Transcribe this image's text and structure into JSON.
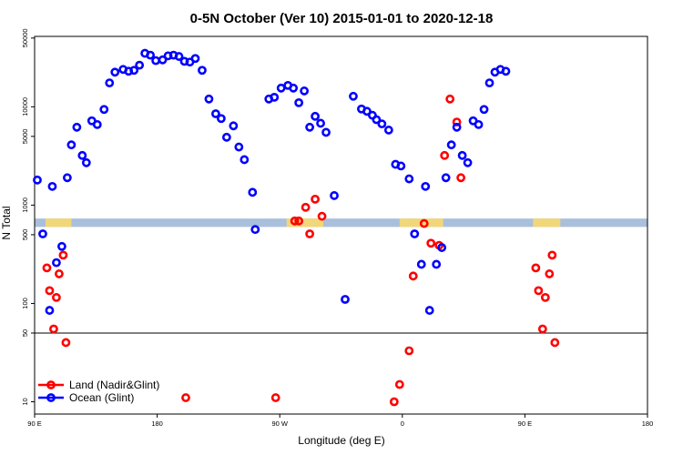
{
  "chart_data": {
    "type": "scatter",
    "title": "0-5N October (Ver 10)   2015-01-01 to 2020-12-18",
    "xlabel": "Longitude (deg E)",
    "ylabel": "N Total",
    "x_ticks": [
      {
        "value": 90,
        "label": "90 E"
      },
      {
        "value": 180,
        "label": "180"
      },
      {
        "value": 270,
        "label": "90 W"
      },
      {
        "value": 360,
        "label": "0"
      },
      {
        "value": 450,
        "label": "90 E"
      },
      {
        "value": 540,
        "label": "180"
      }
    ],
    "y_ticks": [
      {
        "value": 10,
        "label": "10"
      },
      {
        "value": 50,
        "label": "50"
      },
      {
        "value": 100,
        "label": "100"
      },
      {
        "value": 500,
        "label": "500"
      },
      {
        "value": 1000,
        "label": "1000"
      },
      {
        "value": 5000,
        "label": "5000"
      },
      {
        "value": 10000,
        "label": "10000"
      },
      {
        "value": 50000,
        "label": "50000"
      }
    ],
    "xlim": [
      90,
      540
    ],
    "ylim": [
      7.5,
      52000
    ],
    "y_scale": "log",
    "hline": 50,
    "band_y": [
      600,
      730
    ],
    "band_colors": {
      "background": "#a9bfdc",
      "land": "#f2d77a"
    },
    "land_x_ranges": [
      [
        98,
        117
      ],
      [
        275,
        302
      ],
      [
        358,
        390
      ],
      [
        456,
        476
      ],
      [
        546,
        566
      ]
    ],
    "legend_position": "bottom-left",
    "series": [
      {
        "name": "Land (Nadir&Glint)",
        "color": "#ff0000",
        "points": [
          [
            99,
            230
          ],
          [
            101,
            135
          ],
          [
            104,
            55
          ],
          [
            106,
            115
          ],
          [
            108,
            200
          ],
          [
            111,
            310
          ],
          [
            113,
            40
          ],
          [
            201,
            11
          ],
          [
            267,
            11
          ],
          [
            281,
            690
          ],
          [
            284,
            690
          ],
          [
            289,
            950
          ],
          [
            292,
            510
          ],
          [
            296,
            1150
          ],
          [
            301,
            770
          ],
          [
            354,
            10
          ],
          [
            358,
            15
          ],
          [
            365,
            33
          ],
          [
            368,
            190
          ],
          [
            376,
            650
          ],
          [
            381,
            410
          ],
          [
            387,
            390
          ],
          [
            391,
            3200
          ],
          [
            395,
            12000
          ],
          [
            400,
            7000
          ],
          [
            403,
            1900
          ],
          [
            458,
            230
          ],
          [
            460,
            135
          ],
          [
            463,
            55
          ],
          [
            465,
            115
          ],
          [
            468,
            200
          ],
          [
            470,
            310
          ],
          [
            472,
            40
          ]
        ]
      },
      {
        "name": "Ocean (Glint)",
        "color": "#0000ff",
        "points": [
          [
            92,
            1800
          ],
          [
            96,
            510
          ],
          [
            101,
            85
          ],
          [
            103,
            1550
          ],
          [
            106,
            260
          ],
          [
            110,
            380
          ],
          [
            114,
            1900
          ],
          [
            117,
            4100
          ],
          [
            121,
            6200
          ],
          [
            125,
            3200
          ],
          [
            128,
            2700
          ],
          [
            132,
            7200
          ],
          [
            136,
            6600
          ],
          [
            141,
            9400
          ],
          [
            145,
            17500
          ],
          [
            149,
            22500
          ],
          [
            155,
            24000
          ],
          [
            159,
            23000
          ],
          [
            163,
            23500
          ],
          [
            167,
            26500
          ],
          [
            171,
            35000
          ],
          [
            175,
            33500
          ],
          [
            179,
            29500
          ],
          [
            184,
            30000
          ],
          [
            188,
            33000
          ],
          [
            192,
            33500
          ],
          [
            196,
            32500
          ],
          [
            200,
            29000
          ],
          [
            204,
            28500
          ],
          [
            208,
            31000
          ],
          [
            213,
            23500
          ],
          [
            218,
            12000
          ],
          [
            223,
            8500
          ],
          [
            227,
            7600
          ],
          [
            231,
            4900
          ],
          [
            236,
            6400
          ],
          [
            240,
            3900
          ],
          [
            244,
            2900
          ],
          [
            250,
            1350
          ],
          [
            252,
            565
          ],
          [
            262,
            12000
          ],
          [
            266,
            12500
          ],
          [
            271,
            15500
          ],
          [
            276,
            16500
          ],
          [
            280,
            15500
          ],
          [
            284,
            11000
          ],
          [
            288,
            14500
          ],
          [
            292,
            6200
          ],
          [
            296,
            8000
          ],
          [
            300,
            6800
          ],
          [
            304,
            5500
          ],
          [
            310,
            1250
          ],
          [
            318,
            110
          ],
          [
            324,
            12800
          ],
          [
            330,
            9500
          ],
          [
            334,
            9000
          ],
          [
            338,
            8200
          ],
          [
            341,
            7400
          ],
          [
            345,
            6700
          ],
          [
            350,
            5800
          ],
          [
            355,
            2600
          ],
          [
            359,
            2500
          ],
          [
            365,
            1850
          ],
          [
            369,
            510
          ],
          [
            374,
            250
          ],
          [
            377,
            1550
          ],
          [
            380,
            85
          ],
          [
            385,
            250
          ],
          [
            389,
            370
          ],
          [
            392,
            1900
          ],
          [
            396,
            4100
          ],
          [
            400,
            6200
          ],
          [
            404,
            3200
          ],
          [
            408,
            2700
          ],
          [
            412,
            7200
          ],
          [
            416,
            6600
          ],
          [
            420,
            9400
          ],
          [
            424,
            17500
          ],
          [
            428,
            22500
          ],
          [
            432,
            24000
          ],
          [
            436,
            23000
          ]
        ]
      }
    ]
  }
}
